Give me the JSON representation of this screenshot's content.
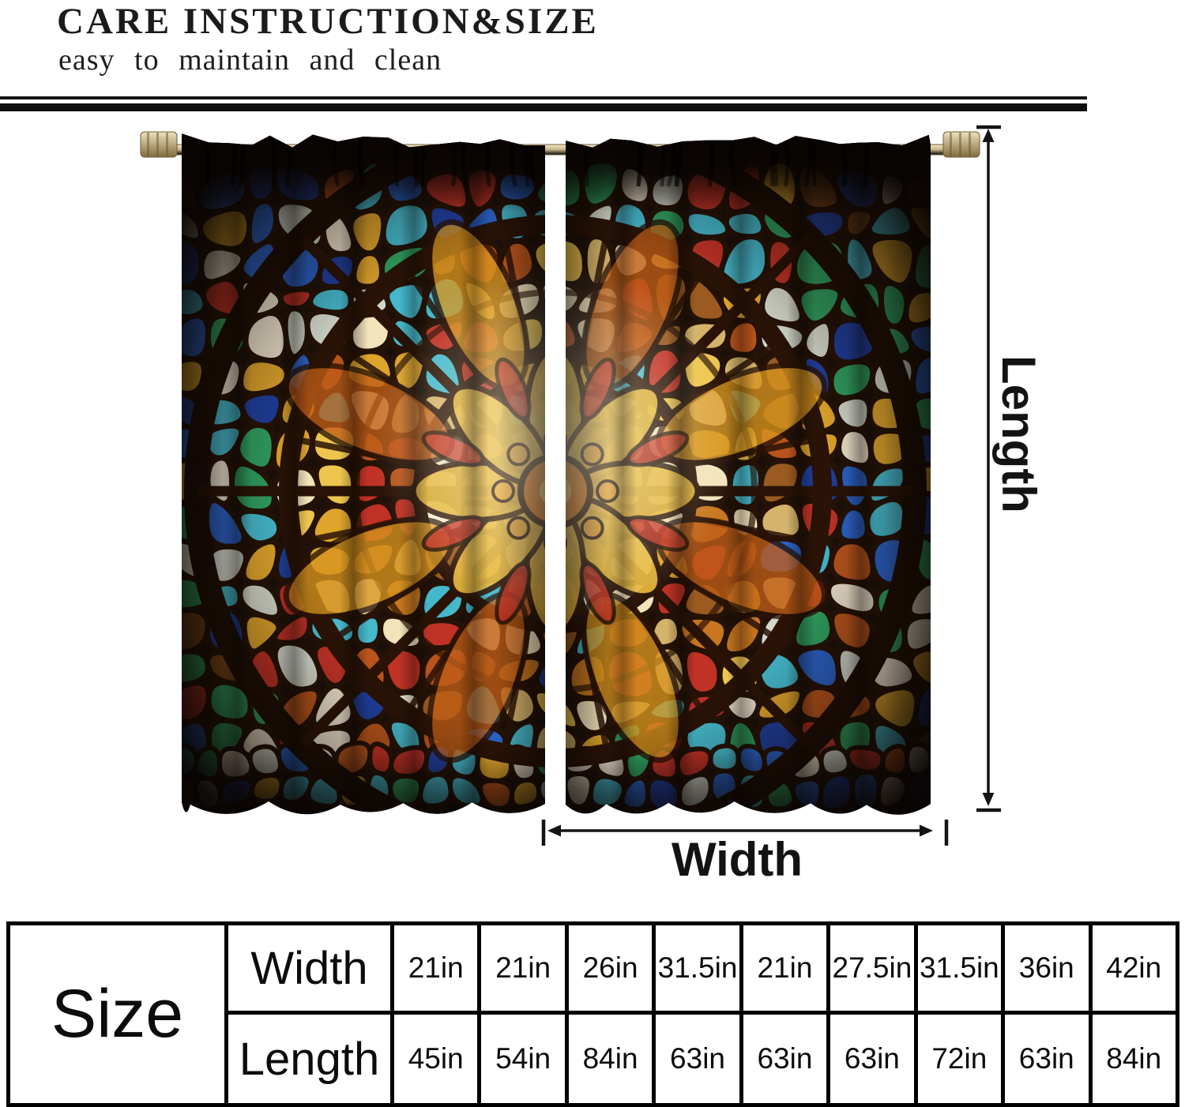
{
  "header": {
    "title": "CARE INSTRUCTION&SIZE",
    "subtitle": "easy to maintain and clean"
  },
  "diagram": {
    "length_label": "Length",
    "width_label": "Width",
    "subject": "two-panel stained-glass rose-window rod-pocket curtains on a metal rod"
  },
  "size_table": {
    "corner_label": "Size",
    "row_headers": [
      "Width",
      "Length"
    ],
    "width_values": [
      "21in",
      "21in",
      "26in",
      "31.5in",
      "21in",
      "27.5in",
      "31.5in",
      "36in",
      "42in"
    ],
    "length_values": [
      "45in",
      "54in",
      "84in",
      "63in",
      "63in",
      "63in",
      "72in",
      "63in",
      "84in"
    ]
  },
  "palette": {
    "lead": "#241206",
    "fabric_dark": "#1a1009",
    "rod_metal": "#c9b586",
    "table_gray": "#c7c7c7",
    "glass_core": [
      "#f2e3bb",
      "#eec64f",
      "#dfa42c",
      "#f6d87a",
      "#e8b23a",
      "#f7efd8"
    ],
    "glass_mid": [
      "#dfa42c",
      "#c8761f",
      "#eec64f",
      "#b8541c",
      "#f2e3bb",
      "#9a5a20",
      "#d4b36a",
      "#45b8cc",
      "#c03226"
    ],
    "glass_outer": [
      "#45b8cc",
      "#2a62c8",
      "#c03226",
      "#dfa42c",
      "#ece2cc",
      "#1f3f9e",
      "#d4d8cc",
      "#b8541c",
      "#2fa060"
    ],
    "glass_corner": [
      "#2a62c8",
      "#45b8cc",
      "#1f3f9e",
      "#c03226",
      "#ece2cc",
      "#7a4418",
      "#2fa060",
      "#dfa42c"
    ]
  }
}
